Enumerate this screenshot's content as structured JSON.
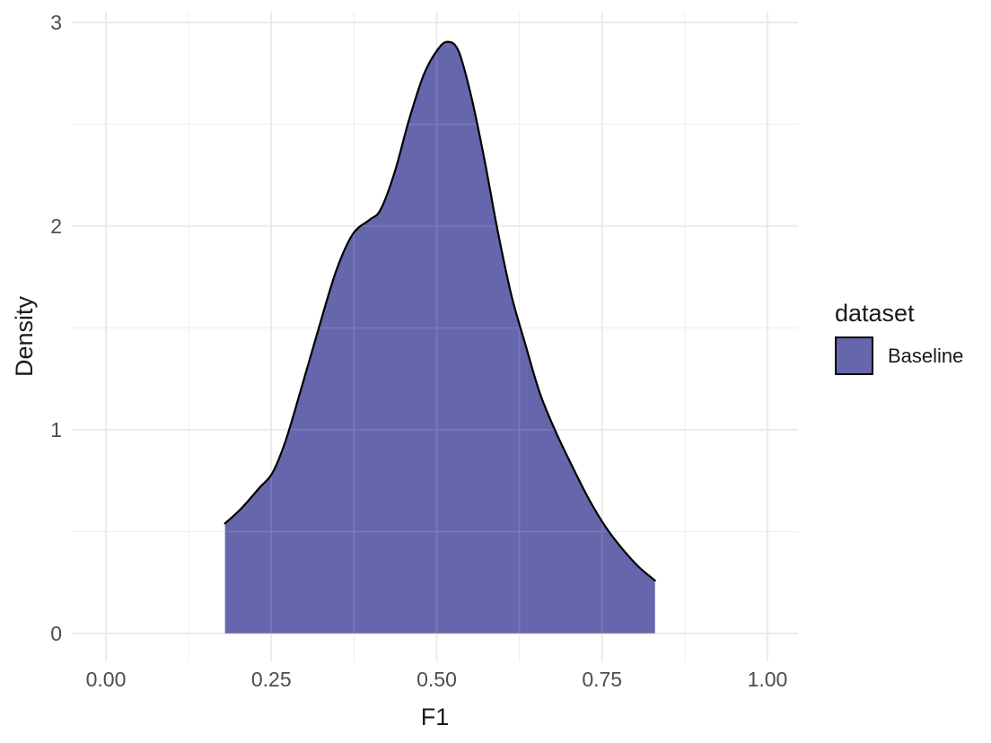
{
  "chart_data": {
    "type": "area",
    "subtype": "density",
    "title": "",
    "xlabel": "F1",
    "ylabel": "Density",
    "xlim": [
      -0.0516,
      1.0462
    ],
    "ylim": [
      -0.137,
      3.053
    ],
    "grid": {
      "show": true,
      "major_color": "#e7e7e7",
      "minor_color": "#efefef",
      "overlay_color": "#ebebeb",
      "overlay_opacity": 0.15
    },
    "x_ticks": {
      "major": [
        0,
        0.25,
        0.5,
        0.75,
        1.0
      ],
      "major_labels": [
        "0.00",
        "0.25",
        "0.50",
        "0.75",
        "1.00"
      ],
      "minor": [
        0.125,
        0.375,
        0.625,
        0.875
      ]
    },
    "y_ticks": {
      "major": [
        0,
        1,
        2,
        3
      ],
      "major_labels": [
        "0",
        "1",
        "2",
        "3"
      ],
      "minor": [
        0.5,
        1.5,
        2.5
      ]
    },
    "legend": {
      "title": "dataset",
      "position": "right",
      "entries": [
        {
          "label": "Baseline",
          "fill": "#6666ac",
          "stroke": "#000000"
        }
      ]
    },
    "series": [
      {
        "name": "Baseline",
        "fill": "#6666ac",
        "stroke": "#000000",
        "stroke_width": 2.2,
        "baseline": 0,
        "x_range": [
          0.18,
          0.83
        ],
        "peak": {
          "x": 0.516,
          "density": 2.9
        },
        "points": [
          [
            0.18,
            0.54
          ],
          [
            0.205,
            0.615
          ],
          [
            0.232,
            0.715
          ],
          [
            0.252,
            0.79
          ],
          [
            0.272,
            0.95
          ],
          [
            0.295,
            1.2
          ],
          [
            0.32,
            1.48
          ],
          [
            0.348,
            1.78
          ],
          [
            0.373,
            1.96
          ],
          [
            0.398,
            2.03
          ],
          [
            0.415,
            2.08
          ],
          [
            0.436,
            2.26
          ],
          [
            0.458,
            2.52
          ],
          [
            0.48,
            2.74
          ],
          [
            0.5,
            2.86
          ],
          [
            0.516,
            2.905
          ],
          [
            0.533,
            2.86
          ],
          [
            0.552,
            2.64
          ],
          [
            0.572,
            2.33
          ],
          [
            0.592,
            1.98
          ],
          [
            0.613,
            1.66
          ],
          [
            0.634,
            1.42
          ],
          [
            0.656,
            1.18
          ],
          [
            0.68,
            0.99
          ],
          [
            0.705,
            0.82
          ],
          [
            0.73,
            0.66
          ],
          [
            0.756,
            0.52
          ],
          [
            0.782,
            0.41
          ],
          [
            0.806,
            0.325
          ],
          [
            0.83,
            0.26
          ]
        ]
      }
    ]
  }
}
